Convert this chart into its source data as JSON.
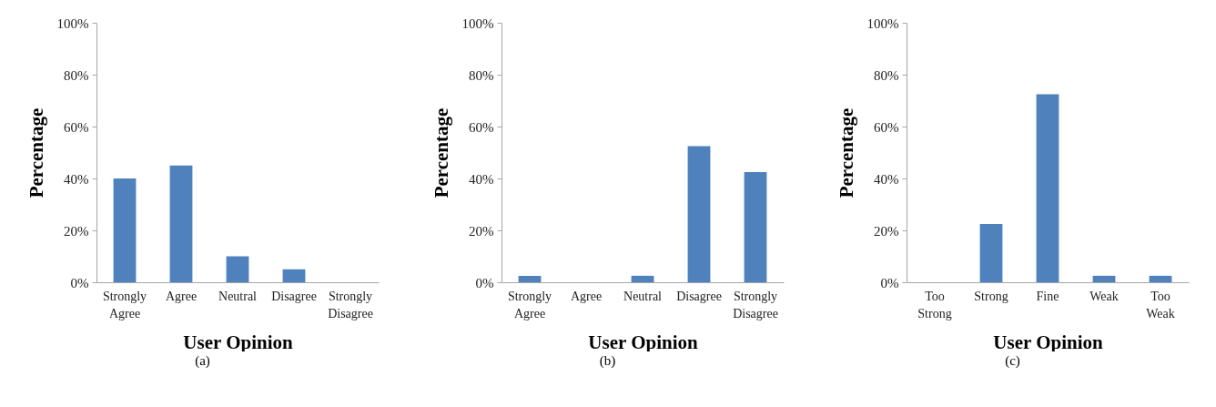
{
  "chart_data": [
    {
      "type": "bar",
      "xlabel": "User Opinion",
      "ylabel": "Percentage",
      "categories": [
        "Strongly Agree",
        "Agree",
        "Neutral",
        "Disagree",
        "Strongly Disagree"
      ],
      "values": [
        40,
        45,
        10,
        5,
        0
      ],
      "color": "#4f81bd",
      "ylim": [
        0,
        100
      ],
      "yticks": [
        {
          "value": 0,
          "label": "0%"
        },
        {
          "value": 20,
          "label": "20%"
        },
        {
          "value": 40,
          "label": "40%"
        },
        {
          "value": 60,
          "label": "60%"
        },
        {
          "value": 80,
          "label": "80%"
        },
        {
          "value": 100,
          "label": "100%"
        }
      ],
      "grid": false,
      "annotations": [
        "(a)"
      ]
    },
    {
      "type": "bar",
      "xlabel": "User Opinion",
      "ylabel": "Percentage",
      "categories": [
        "Strongly Agree",
        "Agree",
        "Neutral",
        "Disagree",
        "Strongly Disagree"
      ],
      "values": [
        2.5,
        0,
        2.5,
        52.5,
        42.5
      ],
      "color": "#4f81bd",
      "ylim": [
        0,
        100
      ],
      "yticks": [
        {
          "value": 0,
          "label": "0%"
        },
        {
          "value": 20,
          "label": "20%"
        },
        {
          "value": 40,
          "label": "40%"
        },
        {
          "value": 60,
          "label": "60%"
        },
        {
          "value": 80,
          "label": "80%"
        },
        {
          "value": 100,
          "label": "100%"
        }
      ],
      "grid": false,
      "annotations": [
        "(b)"
      ]
    },
    {
      "type": "bar",
      "xlabel": "User Opinion",
      "ylabel": "Percentage",
      "categories": [
        "Too Strong",
        "Strong",
        "Fine",
        "Weak",
        "Too Weak"
      ],
      "values": [
        0,
        22.5,
        72.5,
        2.5,
        2.5
      ],
      "color": "#4f81bd",
      "ylim": [
        0,
        100
      ],
      "yticks": [
        {
          "value": 0,
          "label": "0%"
        },
        {
          "value": 20,
          "label": "20%"
        },
        {
          "value": 40,
          "label": "40%"
        },
        {
          "value": 60,
          "label": "60%"
        },
        {
          "value": 80,
          "label": "80%"
        },
        {
          "value": 100,
          "label": "100%"
        }
      ],
      "grid": false,
      "annotations": [
        "(c)"
      ]
    }
  ]
}
